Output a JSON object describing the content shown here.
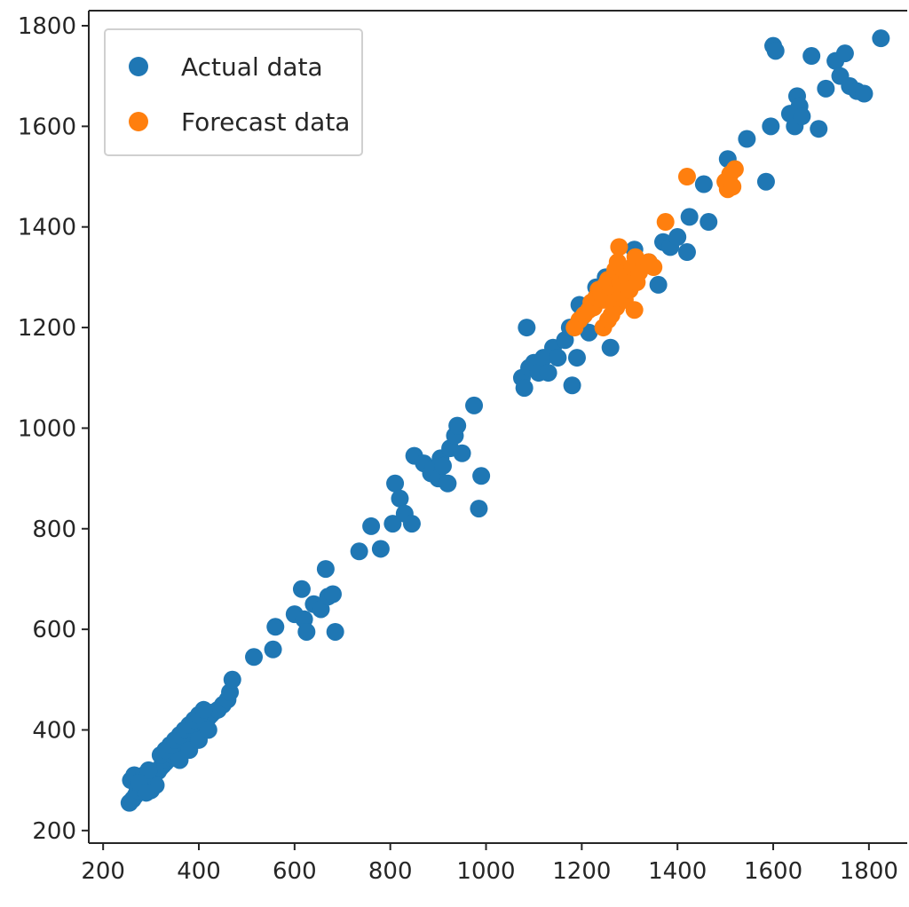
{
  "chart_data": {
    "type": "scatter",
    "title": "",
    "xlabel": "",
    "ylabel": "",
    "xlim": [
      170,
      1880
    ],
    "ylim": [
      175,
      1830
    ],
    "xticks": [
      200,
      400,
      600,
      800,
      1000,
      1200,
      1400,
      1600,
      1800
    ],
    "yticks": [
      200,
      400,
      600,
      800,
      1000,
      1200,
      1400,
      1600,
      1800
    ],
    "grid": false,
    "legend_position": "upper-left",
    "series": [
      {
        "name": "Actual data",
        "color": "#1f77b4",
        "points": [
          [
            255,
            255
          ],
          [
            262,
            262
          ],
          [
            268,
            270
          ],
          [
            258,
            300
          ],
          [
            265,
            310
          ],
          [
            272,
            280
          ],
          [
            280,
            285
          ],
          [
            285,
            292
          ],
          [
            290,
            295
          ],
          [
            295,
            300
          ],
          [
            300,
            305
          ],
          [
            305,
            308
          ],
          [
            310,
            315
          ],
          [
            315,
            318
          ],
          [
            320,
            325
          ],
          [
            325,
            330
          ],
          [
            330,
            335
          ],
          [
            335,
            340
          ],
          [
            340,
            345
          ],
          [
            345,
            350
          ],
          [
            350,
            355
          ],
          [
            355,
            360
          ],
          [
            360,
            365
          ],
          [
            365,
            370
          ],
          [
            370,
            375
          ],
          [
            375,
            380
          ],
          [
            380,
            385
          ],
          [
            385,
            390
          ],
          [
            390,
            395
          ],
          [
            395,
            400
          ],
          [
            400,
            405
          ],
          [
            405,
            410
          ],
          [
            410,
            415
          ],
          [
            415,
            420
          ],
          [
            420,
            425
          ],
          [
            425,
            430
          ],
          [
            430,
            435
          ],
          [
            440,
            440
          ],
          [
            450,
            450
          ],
          [
            460,
            460
          ],
          [
            465,
            475
          ],
          [
            470,
            500
          ],
          [
            320,
            350
          ],
          [
            330,
            360
          ],
          [
            340,
            370
          ],
          [
            350,
            380
          ],
          [
            360,
            390
          ],
          [
            370,
            400
          ],
          [
            380,
            410
          ],
          [
            390,
            420
          ],
          [
            400,
            430
          ],
          [
            410,
            440
          ],
          [
            360,
            340
          ],
          [
            380,
            360
          ],
          [
            400,
            380
          ],
          [
            420,
            400
          ],
          [
            300,
            280
          ],
          [
            310,
            290
          ],
          [
            285,
            310
          ],
          [
            295,
            320
          ],
          [
            275,
            295
          ],
          [
            290,
            275
          ],
          [
            515,
            545
          ],
          [
            555,
            560
          ],
          [
            560,
            605
          ],
          [
            600,
            630
          ],
          [
            615,
            680
          ],
          [
            620,
            620
          ],
          [
            625,
            595
          ],
          [
            640,
            650
          ],
          [
            655,
            640
          ],
          [
            665,
            720
          ],
          [
            670,
            665
          ],
          [
            680,
            670
          ],
          [
            685,
            595
          ],
          [
            735,
            755
          ],
          [
            760,
            805
          ],
          [
            780,
            760
          ],
          [
            805,
            810
          ],
          [
            810,
            890
          ],
          [
            820,
            860
          ],
          [
            830,
            830
          ],
          [
            845,
            810
          ],
          [
            850,
            945
          ],
          [
            870,
            930
          ],
          [
            885,
            910
          ],
          [
            890,
            920
          ],
          [
            900,
            900
          ],
          [
            905,
            940
          ],
          [
            910,
            925
          ],
          [
            920,
            890
          ],
          [
            925,
            960
          ],
          [
            935,
            985
          ],
          [
            940,
            1005
          ],
          [
            950,
            950
          ],
          [
            975,
            1045
          ],
          [
            985,
            840
          ],
          [
            990,
            905
          ],
          [
            1075,
            1100
          ],
          [
            1080,
            1080
          ],
          [
            1085,
            1200
          ],
          [
            1090,
            1120
          ],
          [
            1100,
            1130
          ],
          [
            1110,
            1110
          ],
          [
            1120,
            1140
          ],
          [
            1130,
            1110
          ],
          [
            1140,
            1160
          ],
          [
            1150,
            1140
          ],
          [
            1165,
            1175
          ],
          [
            1175,
            1200
          ],
          [
            1180,
            1085
          ],
          [
            1190,
            1140
          ],
          [
            1195,
            1245
          ],
          [
            1200,
            1220
          ],
          [
            1215,
            1190
          ],
          [
            1230,
            1280
          ],
          [
            1250,
            1300
          ],
          [
            1260,
            1160
          ],
          [
            1280,
            1305
          ],
          [
            1310,
            1355
          ],
          [
            1340,
            1330
          ],
          [
            1360,
            1285
          ],
          [
            1370,
            1370
          ],
          [
            1385,
            1360
          ],
          [
            1400,
            1380
          ],
          [
            1420,
            1350
          ],
          [
            1425,
            1420
          ],
          [
            1455,
            1485
          ],
          [
            1465,
            1410
          ],
          [
            1505,
            1535
          ],
          [
            1545,
            1575
          ],
          [
            1585,
            1490
          ],
          [
            1595,
            1600
          ],
          [
            1600,
            1760
          ],
          [
            1605,
            1750
          ],
          [
            1635,
            1625
          ],
          [
            1645,
            1600
          ],
          [
            1650,
            1660
          ],
          [
            1655,
            1640
          ],
          [
            1660,
            1620
          ],
          [
            1680,
            1740
          ],
          [
            1695,
            1595
          ],
          [
            1710,
            1675
          ],
          [
            1730,
            1730
          ],
          [
            1740,
            1700
          ],
          [
            1750,
            1745
          ],
          [
            1760,
            1680
          ],
          [
            1775,
            1670
          ],
          [
            1790,
            1665
          ],
          [
            1825,
            1775
          ]
        ]
      },
      {
        "name": "Forecast data",
        "color": "#ff7f0e",
        "points": [
          [
            1185,
            1200
          ],
          [
            1195,
            1215
          ],
          [
            1205,
            1225
          ],
          [
            1215,
            1235
          ],
          [
            1220,
            1250
          ],
          [
            1225,
            1240
          ],
          [
            1230,
            1260
          ],
          [
            1235,
            1275
          ],
          [
            1240,
            1265
          ],
          [
            1245,
            1255
          ],
          [
            1250,
            1285
          ],
          [
            1255,
            1295
          ],
          [
            1260,
            1280
          ],
          [
            1265,
            1300
          ],
          [
            1268,
            1250
          ],
          [
            1270,
            1315
          ],
          [
            1272,
            1240
          ],
          [
            1275,
            1330
          ],
          [
            1278,
            1360
          ],
          [
            1280,
            1290
          ],
          [
            1285,
            1270
          ],
          [
            1288,
            1310
          ],
          [
            1290,
            1255
          ],
          [
            1295,
            1300
          ],
          [
            1300,
            1275
          ],
          [
            1305,
            1320
          ],
          [
            1310,
            1235
          ],
          [
            1312,
            1340
          ],
          [
            1315,
            1290
          ],
          [
            1320,
            1310
          ],
          [
            1330,
            1325
          ],
          [
            1340,
            1330
          ],
          [
            1350,
            1320
          ],
          [
            1245,
            1200
          ],
          [
            1255,
            1215
          ],
          [
            1262,
            1225
          ],
          [
            1375,
            1410
          ],
          [
            1420,
            1500
          ],
          [
            1500,
            1490
          ],
          [
            1505,
            1475
          ],
          [
            1510,
            1505
          ],
          [
            1515,
            1480
          ],
          [
            1520,
            1515
          ]
        ]
      }
    ]
  }
}
